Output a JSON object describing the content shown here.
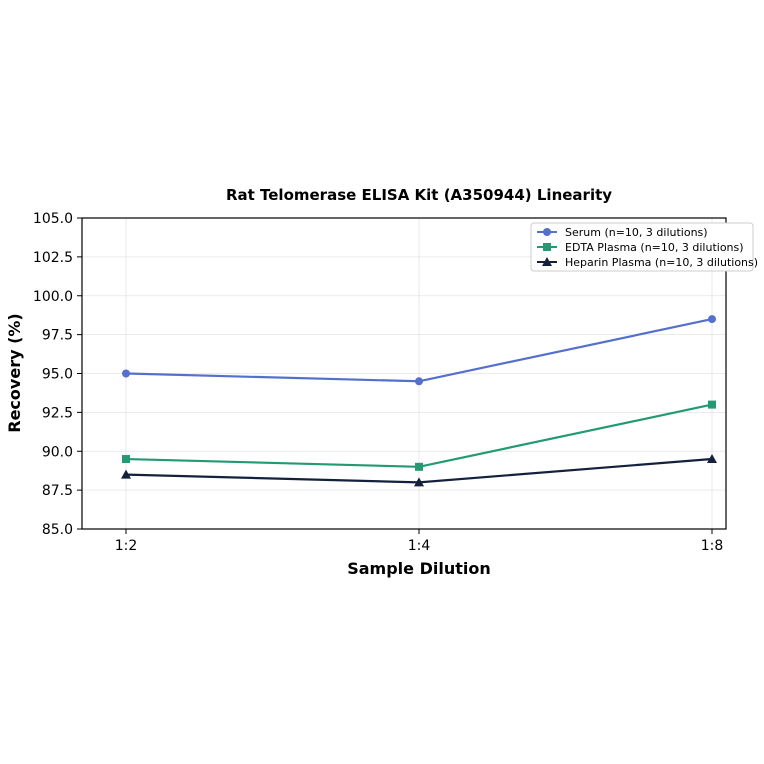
{
  "chart_data": {
    "type": "line",
    "title": "Rat Telomerase ELISA Kit (A350944) Linearity",
    "xlabel": "Sample Dilution",
    "ylabel": "Recovery (%)",
    "categories": [
      "1:2",
      "1:4",
      "1:8"
    ],
    "ylim": [
      85.0,
      105.0
    ],
    "yticks": [
      "85.0",
      "87.5",
      "90.0",
      "92.5",
      "95.0",
      "97.5",
      "100.0",
      "102.5",
      "105.0"
    ],
    "grid": true,
    "legend_position": "top-right",
    "series": [
      {
        "name": "Serum (n=10, 3 dilutions)",
        "values": [
          95.0,
          94.5,
          98.5
        ],
        "color": "#5470cc",
        "marker": "circle"
      },
      {
        "name": "EDTA Plasma (n=10, 3 dilutions)",
        "values": [
          89.5,
          89.0,
          93.0
        ],
        "color": "#229a72",
        "marker": "square"
      },
      {
        "name": "Heparin Plasma (n=10, 3 dilutions)",
        "values": [
          88.5,
          88.0,
          89.5
        ],
        "color": "#14213d",
        "marker": "triangle"
      }
    ]
  }
}
